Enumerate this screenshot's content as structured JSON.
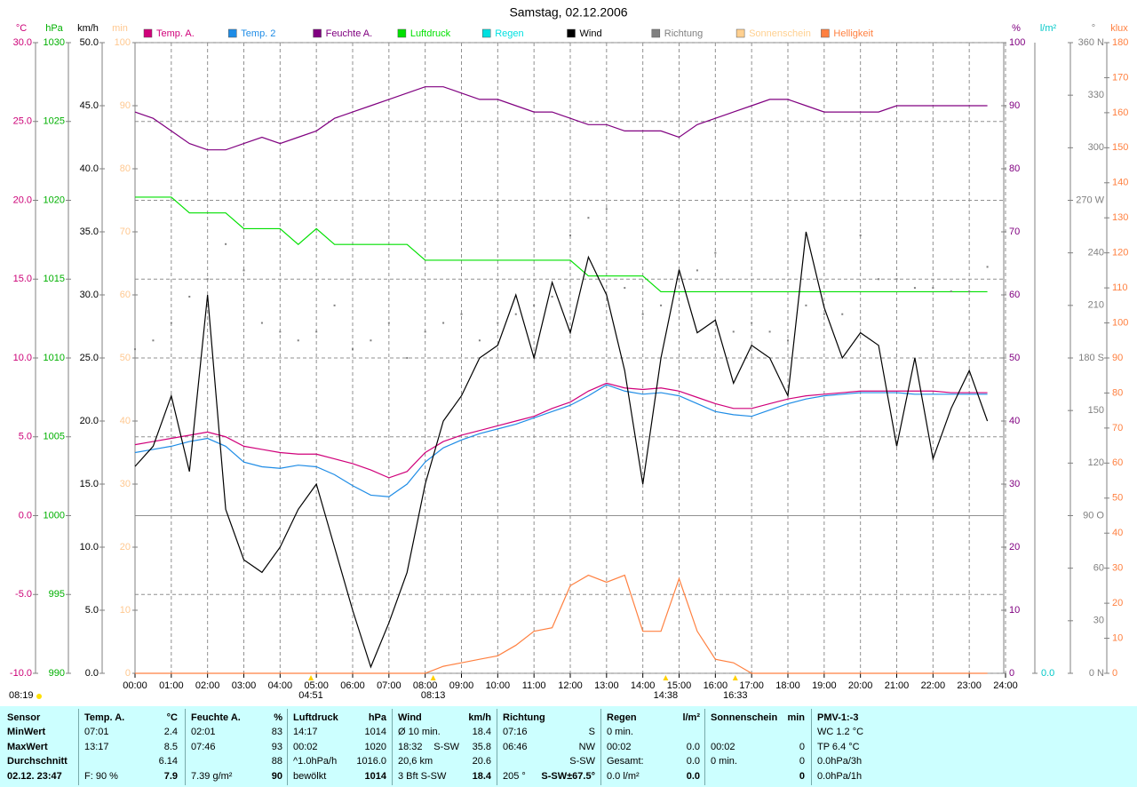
{
  "chart_data": {
    "type": "line",
    "title": "Samstag, 02.12.2006",
    "xlim": [
      0,
      24
    ],
    "xticks": [
      {
        "value": 0,
        "label": "00:00"
      },
      {
        "value": 1,
        "label": "01:00"
      },
      {
        "value": 2,
        "label": "02:00"
      },
      {
        "value": 3,
        "label": "03:00"
      },
      {
        "value": 4,
        "label": "04:00"
      },
      {
        "value": 5,
        "label": "05:00"
      },
      {
        "value": 6,
        "label": "06:00"
      },
      {
        "value": 7,
        "label": "07:00"
      },
      {
        "value": 8,
        "label": "08:00"
      },
      {
        "value": 9,
        "label": "09:00"
      },
      {
        "value": 10,
        "label": "10:00"
      },
      {
        "value": 11,
        "label": "11:00"
      },
      {
        "value": 12,
        "label": "12:00"
      },
      {
        "value": 13,
        "label": "13:00"
      },
      {
        "value": 14,
        "label": "14:00"
      },
      {
        "value": 15,
        "label": "15:00"
      },
      {
        "value": 16,
        "label": "16:00"
      },
      {
        "value": 17,
        "label": "17:00"
      },
      {
        "value": 18,
        "label": "18:00"
      },
      {
        "value": 19,
        "label": "19:00"
      },
      {
        "value": 20,
        "label": "20:00"
      },
      {
        "value": 21,
        "label": "21:00"
      },
      {
        "value": 22,
        "label": "22:00"
      },
      {
        "value": 23,
        "label": "23:00"
      },
      {
        "value": 24,
        "label": "24:00"
      }
    ],
    "grid": true,
    "axes": [
      {
        "label": "°C",
        "color": "#cc0077",
        "lim": [
          -10,
          30
        ],
        "ticks": [
          {
            "value": -10,
            "label": "-10.0"
          },
          {
            "value": -5,
            "label": "-5.0"
          },
          {
            "value": 0,
            "label": "0.0"
          },
          {
            "value": 5,
            "label": "5.0"
          },
          {
            "value": 10,
            "label": "10.0"
          },
          {
            "value": 15,
            "label": "15.0"
          },
          {
            "value": 20,
            "label": "20.0"
          },
          {
            "value": 25,
            "label": "25.0"
          },
          {
            "value": 30,
            "label": "30.0"
          }
        ]
      },
      {
        "label": "hPa",
        "color": "#00b000",
        "lim": [
          990,
          1030
        ],
        "ticks": [
          990,
          995,
          1000,
          1005,
          1010,
          1015,
          1020,
          1025,
          1030
        ]
      },
      {
        "label": "km/h",
        "color": "#000000",
        "lim": [
          0,
          50
        ],
        "ticks": [
          {
            "value": 0,
            "label": "0.0"
          },
          {
            "value": 5,
            "label": "5.0"
          },
          {
            "value": 10,
            "label": "10.0"
          },
          {
            "value": 15,
            "label": "15.0"
          },
          {
            "value": 20,
            "label": "20.0"
          },
          {
            "value": 25,
            "label": "25.0"
          },
          {
            "value": 30,
            "label": "30.0"
          },
          {
            "value": 35,
            "label": "35.0"
          },
          {
            "value": 40,
            "label": "40.0"
          },
          {
            "value": 45,
            "label": "45.0"
          },
          {
            "value": 50,
            "label": "50.0"
          }
        ]
      },
      {
        "label": "min",
        "color": "#ffc890",
        "lim": [
          0,
          100
        ],
        "ticks": [
          0,
          10,
          20,
          30,
          40,
          50,
          60,
          70,
          80,
          90,
          100
        ]
      },
      {
        "label": "%",
        "color": "#800080",
        "lim": [
          0,
          100
        ],
        "ticks": [
          0,
          10,
          20,
          30,
          40,
          50,
          60,
          70,
          80,
          90,
          100
        ]
      },
      {
        "label": "l/m²",
        "color": "#00c8c8",
        "ticks": [
          {
            "value": 0,
            "label": "0.0"
          }
        ]
      },
      {
        "label": "°",
        "color": "#808080",
        "lim": [
          0,
          360
        ],
        "ticks": [
          {
            "value": 0,
            "label": "0 N"
          },
          30,
          60,
          {
            "value": 90,
            "label": "90 O"
          },
          120,
          150,
          {
            "value": 180,
            "label": "180 S"
          },
          210,
          240,
          {
            "value": 270,
            "label": "270 W"
          },
          300,
          330,
          {
            "value": 360,
            "label": "360 N"
          }
        ]
      },
      {
        "label": "klux",
        "color": "#ff8040",
        "lim": [
          0,
          180
        ],
        "ticks": [
          0,
          10,
          20,
          30,
          40,
          50,
          60,
          70,
          80,
          90,
          100,
          110,
          120,
          130,
          140,
          150,
          160,
          170,
          180
        ]
      }
    ],
    "x": [
      0,
      0.5,
      1,
      1.5,
      2,
      2.5,
      3,
      3.5,
      4,
      4.5,
      5,
      5.5,
      6,
      6.5,
      7,
      7.5,
      8,
      8.5,
      9,
      9.5,
      10,
      10.5,
      11,
      11.5,
      12,
      12.5,
      13,
      13.5,
      14,
      14.5,
      15,
      15.5,
      16,
      16.5,
      17,
      17.5,
      18,
      18.5,
      19,
      19.5,
      20,
      20.5,
      21,
      21.5,
      22,
      22.5,
      23,
      23.5
    ],
    "series": [
      {
        "name": "Temp. A.",
        "color": "#d0007a",
        "axis": "°C",
        "values": [
          4.5,
          4.7,
          4.9,
          5.1,
          5.3,
          5.0,
          4.4,
          4.2,
          4.0,
          3.9,
          3.9,
          3.6,
          3.3,
          2.9,
          2.4,
          2.8,
          4.0,
          4.7,
          5.1,
          5.4,
          5.7,
          6.0,
          6.3,
          6.8,
          7.2,
          7.9,
          8.4,
          8.1,
          8.0,
          8.1,
          7.9,
          7.5,
          7.1,
          6.8,
          6.8,
          7.1,
          7.4,
          7.6,
          7.7,
          7.8,
          7.9,
          7.9,
          7.9,
          7.9,
          7.9,
          7.8,
          7.8,
          7.8
        ]
      },
      {
        "name": "Temp. 2",
        "color": "#1e8ce6",
        "axis": "°C",
        "values": [
          4.0,
          4.2,
          4.4,
          4.7,
          4.9,
          4.4,
          3.4,
          3.1,
          3.0,
          3.2,
          3.1,
          2.6,
          1.9,
          1.3,
          1.2,
          2.0,
          3.4,
          4.3,
          4.8,
          5.2,
          5.5,
          5.8,
          6.2,
          6.6,
          7.0,
          7.6,
          8.3,
          7.9,
          7.7,
          7.8,
          7.6,
          7.1,
          6.6,
          6.4,
          6.3,
          6.7,
          7.1,
          7.4,
          7.6,
          7.7,
          7.8,
          7.8,
          7.8,
          7.7,
          7.7,
          7.7,
          7.7,
          7.7
        ]
      },
      {
        "name": "Feuchte A.",
        "color": "#800080",
        "axis": "%",
        "values": [
          89,
          88,
          86,
          84,
          83,
          83,
          84,
          85,
          84,
          85,
          86,
          88,
          89,
          90,
          91,
          92,
          93,
          93,
          92,
          91,
          91,
          90,
          89,
          89,
          88,
          87,
          87,
          86,
          86,
          86,
          85,
          87,
          88,
          89,
          90,
          91,
          91,
          90,
          89,
          89,
          89,
          89,
          90,
          90,
          90,
          90,
          90,
          90
        ]
      },
      {
        "name": "Luftdruck",
        "color": "#00e000",
        "axis": "hPa",
        "values": [
          1020.2,
          1020.2,
          1020.2,
          1019.2,
          1019.2,
          1019.2,
          1018.2,
          1018.2,
          1018.2,
          1017.2,
          1018.2,
          1017.2,
          1017.2,
          1017.2,
          1017.2,
          1017.2,
          1016.2,
          1016.2,
          1016.2,
          1016.2,
          1016.2,
          1016.2,
          1016.2,
          1016.2,
          1016.2,
          1015.2,
          1015.2,
          1015.2,
          1015.2,
          1014.2,
          1014.2,
          1014.2,
          1014.2,
          1014.2,
          1014.2,
          1014.2,
          1014.2,
          1014.2,
          1014.2,
          1014.2,
          1014.2,
          1014.2,
          1014.2,
          1014.2,
          1014.2,
          1014.2,
          1014.2,
          1014.2
        ]
      },
      {
        "name": "Regen",
        "color": "#00e0e0"
      },
      {
        "name": "Wind",
        "color": "#000000",
        "axis": "km/h",
        "values": [
          16.4,
          18,
          22,
          16,
          30,
          13,
          9,
          8,
          10,
          13,
          15,
          10,
          5,
          0.5,
          4,
          8,
          15,
          20,
          22,
          25,
          26,
          30,
          25,
          31,
          27,
          33,
          30,
          24,
          15,
          25,
          32,
          27,
          28,
          23,
          26,
          25,
          22,
          35,
          29,
          25,
          27,
          26,
          18,
          25,
          17,
          21,
          24,
          20
        ]
      },
      {
        "name": "Richtung",
        "color": "#808080",
        "axis": "°",
        "marker": "dot",
        "values": [
          185,
          190,
          200,
          215,
          225,
          245,
          230,
          200,
          195,
          190,
          195,
          210,
          185,
          190,
          200,
          180,
          195,
          200,
          205,
          190,
          200,
          205,
          210,
          215,
          250,
          260,
          265,
          220,
          205,
          210,
          225,
          230,
          240,
          195,
          200,
          195,
          190,
          210,
          205,
          205,
          250,
          225,
          225,
          220,
          220,
          218,
          218,
          232
        ]
      },
      {
        "name": "Sonnenschein",
        "color": "#ffd090"
      },
      {
        "name": "Helligkeit",
        "color": "#ff8040",
        "axis": "klux",
        "values": [
          0,
          0,
          0,
          0,
          0,
          0,
          0,
          0,
          0,
          0,
          0,
          0,
          0,
          0,
          0,
          0,
          0,
          2,
          3,
          4,
          5,
          8,
          12,
          13,
          25,
          28,
          26,
          28,
          12,
          12,
          27,
          12,
          4,
          3,
          0,
          0,
          0,
          0,
          0,
          0,
          0,
          0,
          0,
          0,
          0,
          0,
          0,
          0
        ]
      }
    ],
    "markers": [
      {
        "label": "04:51",
        "x": 4.85
      },
      {
        "label": "08:13",
        "x": 8.22
      },
      {
        "label": "14:38",
        "x": 14.63
      },
      {
        "label": "16:33",
        "x": 16.55
      }
    ],
    "day_length": "08:19"
  },
  "table": {
    "blocks": [
      {
        "header": [
          "Sensor"
        ],
        "rows": [
          [
            "MinWert"
          ],
          [
            "MaxWert"
          ],
          [
            "Durchschnitt"
          ],
          [
            "02.12. 23:47"
          ]
        ]
      },
      {
        "header": [
          "Temp. A.",
          "°C"
        ],
        "rows": [
          [
            "07:01",
            "2.4"
          ],
          [
            "13:17",
            "8.5"
          ],
          [
            null,
            "6.14"
          ],
          [
            "F: 90 %",
            "7.9"
          ]
        ]
      },
      {
        "header": [
          "Feuchte A.",
          "%"
        ],
        "rows": [
          [
            "02:01",
            "83"
          ],
          [
            "07:46",
            "93"
          ],
          [
            null,
            "88"
          ],
          [
            "7.39 g/m²",
            "90"
          ]
        ]
      },
      {
        "header": [
          "Luftdruck",
          "hPa"
        ],
        "rows": [
          [
            "14:17",
            "1014"
          ],
          [
            "00:02",
            "1020"
          ],
          [
            "^1.0hPa/h",
            "1016.0"
          ],
          [
            "bewölkt",
            "1014"
          ]
        ]
      },
      {
        "header": [
          "Wind",
          "km/h"
        ],
        "rows": [
          [
            "Ø 10 min.",
            null,
            "18.4"
          ],
          [
            "18:32",
            "S-SW",
            "35.8"
          ],
          [
            "20,6 km",
            null,
            "20.6"
          ],
          [
            "3 Bft S-SW",
            null,
            "18.4"
          ]
        ]
      },
      {
        "header": [
          "Richtung"
        ],
        "rows": [
          [
            "07:16",
            "S"
          ],
          [
            "06:46",
            "NW"
          ],
          [
            null,
            "S-SW"
          ],
          [
            "205 °",
            "S-SW±67.5°"
          ]
        ]
      },
      {
        "header": [
          "Regen",
          "l/m²"
        ],
        "rows": [
          [
            "0 min."
          ],
          [
            "00:02",
            "0.0"
          ],
          [
            "Gesamt:",
            "0.0"
          ],
          [
            "0.0 l/m²",
            "0.0"
          ]
        ]
      },
      {
        "header": [
          "Sonnenschein",
          "min"
        ],
        "rows": [
          [],
          [
            "00:02",
            "0"
          ],
          [
            "0 min.",
            "0"
          ],
          [
            null,
            "0"
          ]
        ]
      },
      {
        "header": [
          "PMV-1:-3"
        ],
        "rows": [
          [
            "WC 1.2 °C"
          ],
          [
            "TP 6.4 °C"
          ],
          [
            "0.0hPa/3h"
          ],
          [
            "0.0hPa/1h"
          ]
        ]
      }
    ]
  }
}
